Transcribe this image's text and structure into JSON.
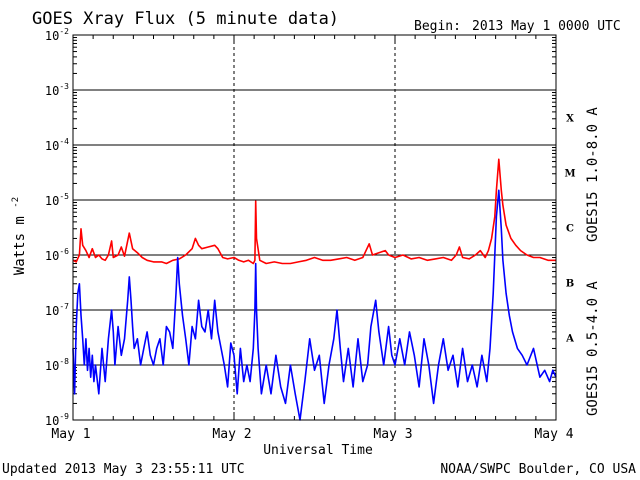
{
  "title": "GOES Xray Flux (5 minute data)",
  "begin_label": "Begin:",
  "begin_value": "2013 May 1 0000 UTC",
  "updated": "Updated 2013 May  3 23:55:11 UTC",
  "credit": "NOAA/SWPC Boulder, CO USA",
  "chart_data": {
    "type": "line",
    "title": "GOES Xray Flux (5 minute data)",
    "xlabel": "Universal Time",
    "ylabel": "Watts m",
    "ylabel_exp": "-2",
    "yscale": "log",
    "ylim": [
      1e-09,
      0.01
    ],
    "xlim": [
      0,
      3
    ],
    "x_units": "days since 2013 May 1 0000 UTC",
    "x_ticks": [
      {
        "x": 0,
        "label": "May 1"
      },
      {
        "x": 1,
        "label": "May 2"
      },
      {
        "x": 2,
        "label": "May 3"
      },
      {
        "x": 3,
        "label": "May 4"
      }
    ],
    "y_ticks": [
      {
        "exp": -9,
        "label": "10",
        "sup": "-9"
      },
      {
        "exp": -8,
        "label": "10",
        "sup": "-8"
      },
      {
        "exp": -7,
        "label": "10",
        "sup": "-7"
      },
      {
        "exp": -6,
        "label": "10",
        "sup": "-6"
      },
      {
        "exp": -5,
        "label": "10",
        "sup": "-5"
      },
      {
        "exp": -4,
        "label": "10",
        "sup": "-4"
      },
      {
        "exp": -3,
        "label": "10",
        "sup": "-3"
      },
      {
        "exp": -2,
        "label": "10",
        "sup": "-2"
      }
    ],
    "flare_classes": [
      {
        "label": "A",
        "exp": -7.5
      },
      {
        "label": "B",
        "exp": -6.5
      },
      {
        "label": "C",
        "exp": -5.5
      },
      {
        "label": "M",
        "exp": -4.5
      },
      {
        "label": "X",
        "exp": -3.5
      }
    ],
    "grid": true,
    "series": [
      {
        "name": "GOES15 1.0-8.0 A",
        "color": "#ff0000",
        "points": [
          [
            0.0,
            8e-07
          ],
          [
            0.02,
            7.5e-07
          ],
          [
            0.04,
            1e-06
          ],
          [
            0.05,
            3e-06
          ],
          [
            0.06,
            1.5e-06
          ],
          [
            0.08,
            1.2e-06
          ],
          [
            0.1,
            9e-07
          ],
          [
            0.12,
            1.3e-06
          ],
          [
            0.14,
            9e-07
          ],
          [
            0.16,
            1e-06
          ],
          [
            0.18,
            8.5e-07
          ],
          [
            0.2,
            8e-07
          ],
          [
            0.22,
            1e-06
          ],
          [
            0.24,
            1.8e-06
          ],
          [
            0.25,
            9e-07
          ],
          [
            0.28,
            1e-06
          ],
          [
            0.3,
            1.4e-06
          ],
          [
            0.32,
            9.5e-07
          ],
          [
            0.35,
            2.5e-06
          ],
          [
            0.37,
            1.3e-06
          ],
          [
            0.4,
            1.1e-06
          ],
          [
            0.43,
            9e-07
          ],
          [
            0.46,
            8e-07
          ],
          [
            0.5,
            7.5e-07
          ],
          [
            0.55,
            7.5e-07
          ],
          [
            0.58,
            7e-07
          ],
          [
            0.62,
            8e-07
          ],
          [
            0.66,
            8.5e-07
          ],
          [
            0.7,
            1e-06
          ],
          [
            0.74,
            1.3e-06
          ],
          [
            0.76,
            2e-06
          ],
          [
            0.78,
            1.5e-06
          ],
          [
            0.8,
            1.3e-06
          ],
          [
            0.84,
            1.4e-06
          ],
          [
            0.88,
            1.5e-06
          ],
          [
            0.9,
            1.3e-06
          ],
          [
            0.93,
            9e-07
          ],
          [
            0.96,
            8.5e-07
          ],
          [
            1.0,
            9e-07
          ],
          [
            1.03,
            8e-07
          ],
          [
            1.06,
            7.5e-07
          ],
          [
            1.09,
            8e-07
          ],
          [
            1.12,
            7e-07
          ],
          [
            1.13,
            8e-07
          ],
          [
            1.135,
            9.5e-06
          ],
          [
            1.14,
            2e-06
          ],
          [
            1.16,
            8e-07
          ],
          [
            1.2,
            7e-07
          ],
          [
            1.25,
            7.5e-07
          ],
          [
            1.3,
            7e-07
          ],
          [
            1.35,
            7e-07
          ],
          [
            1.4,
            7.5e-07
          ],
          [
            1.45,
            8e-07
          ],
          [
            1.5,
            9e-07
          ],
          [
            1.55,
            8e-07
          ],
          [
            1.6,
            8e-07
          ],
          [
            1.65,
            8.5e-07
          ],
          [
            1.7,
            9e-07
          ],
          [
            1.75,
            8e-07
          ],
          [
            1.8,
            9e-07
          ],
          [
            1.84,
            1.6e-06
          ],
          [
            1.86,
            1e-06
          ],
          [
            1.9,
            1.1e-06
          ],
          [
            1.94,
            1.2e-06
          ],
          [
            1.96,
            1e-06
          ],
          [
            2.0,
            9e-07
          ],
          [
            2.05,
            1e-06
          ],
          [
            2.1,
            8.5e-07
          ],
          [
            2.15,
            9e-07
          ],
          [
            2.2,
            8e-07
          ],
          [
            2.25,
            8.5e-07
          ],
          [
            2.3,
            9e-07
          ],
          [
            2.35,
            8e-07
          ],
          [
            2.38,
            1e-06
          ],
          [
            2.4,
            1.4e-06
          ],
          [
            2.42,
            9e-07
          ],
          [
            2.46,
            8.5e-07
          ],
          [
            2.5,
            1e-06
          ],
          [
            2.53,
            1.2e-06
          ],
          [
            2.56,
            9e-07
          ],
          [
            2.58,
            1.2e-06
          ],
          [
            2.6,
            2e-06
          ],
          [
            2.62,
            5e-06
          ],
          [
            2.63,
            1.5e-05
          ],
          [
            2.645,
            5.5e-05
          ],
          [
            2.66,
            1.5e-05
          ],
          [
            2.67,
            8e-06
          ],
          [
            2.69,
            3.5e-06
          ],
          [
            2.72,
            2e-06
          ],
          [
            2.75,
            1.5e-06
          ],
          [
            2.78,
            1.2e-06
          ],
          [
            2.82,
            1e-06
          ],
          [
            2.86,
            9e-07
          ],
          [
            2.9,
            9e-07
          ],
          [
            2.95,
            8e-07
          ],
          [
            3.0,
            8e-07
          ]
        ]
      },
      {
        "name": "GOES15 0.5-4.0 A",
        "color": "#0000ff",
        "points": [
          [
            0.0,
            2e-08
          ],
          [
            0.01,
            3e-09
          ],
          [
            0.02,
            5e-08
          ],
          [
            0.03,
            2e-07
          ],
          [
            0.04,
            3e-07
          ],
          [
            0.05,
            8e-08
          ],
          [
            0.06,
            3e-08
          ],
          [
            0.07,
            1e-08
          ],
          [
            0.08,
            3e-08
          ],
          [
            0.09,
            8e-09
          ],
          [
            0.1,
            2e-08
          ],
          [
            0.11,
            6e-09
          ],
          [
            0.12,
            1.5e-08
          ],
          [
            0.13,
            5e-09
          ],
          [
            0.14,
            1e-08
          ],
          [
            0.16,
            3e-09
          ],
          [
            0.18,
            2e-08
          ],
          [
            0.2,
            5e-09
          ],
          [
            0.22,
            3e-08
          ],
          [
            0.24,
            1e-07
          ],
          [
            0.25,
            4e-08
          ],
          [
            0.26,
            1e-08
          ],
          [
            0.28,
            5e-08
          ],
          [
            0.3,
            1.5e-08
          ],
          [
            0.32,
            3e-08
          ],
          [
            0.34,
            1.5e-07
          ],
          [
            0.35,
            4e-07
          ],
          [
            0.36,
            1.5e-07
          ],
          [
            0.37,
            5e-08
          ],
          [
            0.38,
            2e-08
          ],
          [
            0.4,
            3e-08
          ],
          [
            0.42,
            1e-08
          ],
          [
            0.44,
            2e-08
          ],
          [
            0.46,
            4e-08
          ],
          [
            0.48,
            1.5e-08
          ],
          [
            0.5,
            1e-08
          ],
          [
            0.52,
            2e-08
          ],
          [
            0.54,
            3e-08
          ],
          [
            0.56,
            1e-08
          ],
          [
            0.58,
            5e-08
          ],
          [
            0.6,
            4e-08
          ],
          [
            0.62,
            2e-08
          ],
          [
            0.64,
            2e-07
          ],
          [
            0.65,
            9e-07
          ],
          [
            0.66,
            3e-07
          ],
          [
            0.68,
            8e-08
          ],
          [
            0.7,
            3e-08
          ],
          [
            0.72,
            1e-08
          ],
          [
            0.74,
            5e-08
          ],
          [
            0.76,
            3e-08
          ],
          [
            0.78,
            1.5e-07
          ],
          [
            0.8,
            5e-08
          ],
          [
            0.82,
            4e-08
          ],
          [
            0.84,
            1e-07
          ],
          [
            0.86,
            3e-08
          ],
          [
            0.88,
            1.5e-07
          ],
          [
            0.9,
            4e-08
          ],
          [
            0.92,
            2e-08
          ],
          [
            0.94,
            1e-08
          ],
          [
            0.96,
            4e-09
          ],
          [
            0.98,
            2.5e-08
          ],
          [
            1.0,
            1.5e-08
          ],
          [
            1.02,
            3e-09
          ],
          [
            1.04,
            2e-08
          ],
          [
            1.06,
            5e-09
          ],
          [
            1.08,
            1e-08
          ],
          [
            1.1,
            5e-09
          ],
          [
            1.12,
            2e-08
          ],
          [
            1.13,
            1e-07
          ],
          [
            1.135,
            7e-07
          ],
          [
            1.14,
            1e-07
          ],
          [
            1.15,
            2e-08
          ],
          [
            1.17,
            3e-09
          ],
          [
            1.2,
            1e-08
          ],
          [
            1.23,
            3e-09
          ],
          [
            1.26,
            1.5e-08
          ],
          [
            1.29,
            4e-09
          ],
          [
            1.32,
            2e-09
          ],
          [
            1.35,
            1e-08
          ],
          [
            1.38,
            3e-09
          ],
          [
            1.41,
            1e-09
          ],
          [
            1.44,
            5e-09
          ],
          [
            1.47,
            3e-08
          ],
          [
            1.5,
            8e-09
          ],
          [
            1.53,
            1.5e-08
          ],
          [
            1.56,
            2e-09
          ],
          [
            1.59,
            1e-08
          ],
          [
            1.62,
            3e-08
          ],
          [
            1.64,
            1e-07
          ],
          [
            1.66,
            2e-08
          ],
          [
            1.68,
            5e-09
          ],
          [
            1.71,
            2e-08
          ],
          [
            1.74,
            4e-09
          ],
          [
            1.77,
            3e-08
          ],
          [
            1.8,
            5e-09
          ],
          [
            1.83,
            1e-08
          ],
          [
            1.85,
            5e-08
          ],
          [
            1.88,
            1.5e-07
          ],
          [
            1.9,
            4e-08
          ],
          [
            1.93,
            1e-08
          ],
          [
            1.96,
            5e-08
          ],
          [
            1.98,
            1.5e-08
          ],
          [
            2.0,
            1e-08
          ],
          [
            2.03,
            3e-08
          ],
          [
            2.06,
            1e-08
          ],
          [
            2.09,
            4e-08
          ],
          [
            2.12,
            1.5e-08
          ],
          [
            2.15,
            4e-09
          ],
          [
            2.18,
            3e-08
          ],
          [
            2.21,
            1e-08
          ],
          [
            2.24,
            2e-09
          ],
          [
            2.27,
            1e-08
          ],
          [
            2.3,
            3e-08
          ],
          [
            2.33,
            8e-09
          ],
          [
            2.36,
            1.5e-08
          ],
          [
            2.39,
            4e-09
          ],
          [
            2.42,
            2e-08
          ],
          [
            2.45,
            5e-09
          ],
          [
            2.48,
            1e-08
          ],
          [
            2.51,
            4e-09
          ],
          [
            2.54,
            1.5e-08
          ],
          [
            2.57,
            5e-09
          ],
          [
            2.59,
            2e-08
          ],
          [
            2.61,
            2e-07
          ],
          [
            2.62,
            1e-06
          ],
          [
            2.63,
            5e-06
          ],
          [
            2.645,
            1.5e-05
          ],
          [
            2.66,
            3e-06
          ],
          [
            2.67,
            8e-07
          ],
          [
            2.69,
            2e-07
          ],
          [
            2.71,
            8e-08
          ],
          [
            2.73,
            4e-08
          ],
          [
            2.76,
            2e-08
          ],
          [
            2.79,
            1.5e-08
          ],
          [
            2.82,
            1e-08
          ],
          [
            2.86,
            2e-08
          ],
          [
            2.9,
            6e-09
          ],
          [
            2.93,
            8e-09
          ],
          [
            2.96,
            5e-09
          ],
          [
            2.98,
            8e-09
          ],
          [
            3.0,
            6e-09
          ]
        ]
      }
    ]
  }
}
